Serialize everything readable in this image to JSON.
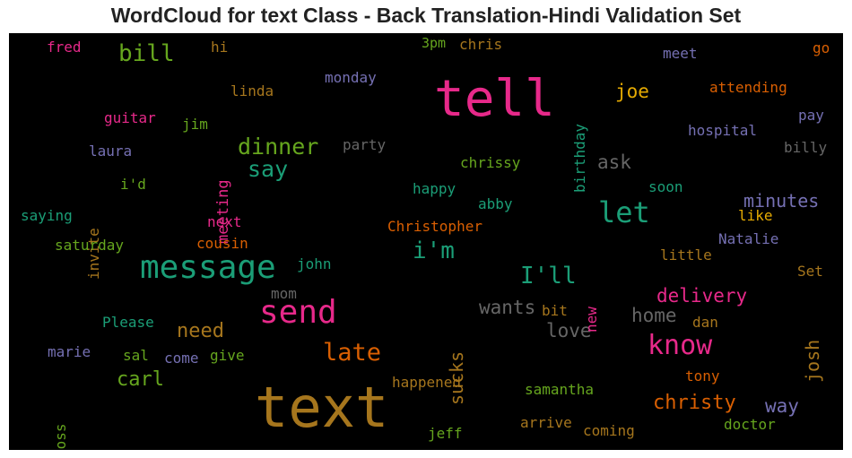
{
  "chart_data": {
    "type": "wordcloud",
    "title": "WordCloud for text Class - Back Translation-Hindi Validation Set",
    "background": "#000000",
    "palette": [
      "#1b9e77",
      "#d95f02",
      "#7570b3",
      "#e7298a",
      "#66a61e",
      "#e6ab02",
      "#a6761d",
      "#666666"
    ],
    "words": [
      {
        "text": "text",
        "color": "#a6761d"
      },
      {
        "text": "tell",
        "color": "#e7298a"
      },
      {
        "text": "message",
        "color": "#1b9e77"
      },
      {
        "text": "send",
        "color": "#e7298a"
      },
      {
        "text": "know",
        "color": "#e7298a"
      },
      {
        "text": "let",
        "color": "#1b9e77"
      },
      {
        "text": "late",
        "color": "#d95f02"
      },
      {
        "text": "dinner",
        "color": "#66a61e"
      },
      {
        "text": "say",
        "color": "#1b9e77"
      },
      {
        "text": "i'm",
        "color": "#1b9e77"
      },
      {
        "text": "I'll",
        "color": "#1b9e77"
      },
      {
        "text": "bill",
        "color": "#66a61e"
      },
      {
        "text": "christy",
        "color": "#d95f02"
      },
      {
        "text": "delivery",
        "color": "#e7298a"
      },
      {
        "text": "minutes",
        "color": "#7570b3"
      },
      {
        "text": "wants",
        "color": "#666666"
      },
      {
        "text": "home",
        "color": "#666666"
      },
      {
        "text": "love",
        "color": "#666666"
      },
      {
        "text": "need",
        "color": "#a6761d"
      },
      {
        "text": "carl",
        "color": "#66a61e"
      },
      {
        "text": "joe",
        "color": "#e6ab02"
      },
      {
        "text": "way",
        "color": "#7570b3"
      },
      {
        "text": "ask",
        "color": "#666666"
      },
      {
        "text": "sucks",
        "color": "#a6761d"
      },
      {
        "text": "josh",
        "color": "#a6761d"
      },
      {
        "text": "birthday",
        "color": "#1b9e77"
      },
      {
        "text": "meeting",
        "color": "#e7298a"
      },
      {
        "text": "invite",
        "color": "#a6761d"
      },
      {
        "text": "boss",
        "color": "#66a61e"
      },
      {
        "text": "new",
        "color": "#e7298a"
      },
      {
        "text": "fred",
        "color": "#e7298a"
      },
      {
        "text": "hi",
        "color": "#a6761d"
      },
      {
        "text": "3pm",
        "color": "#66a61e"
      },
      {
        "text": "chris",
        "color": "#a6761d"
      },
      {
        "text": "meet",
        "color": "#7570b3"
      },
      {
        "text": "go",
        "color": "#d95f02"
      },
      {
        "text": "linda",
        "color": "#a6761d"
      },
      {
        "text": "monday",
        "color": "#7570b3"
      },
      {
        "text": "attending",
        "color": "#d95f02"
      },
      {
        "text": "guitar",
        "color": "#e7298a"
      },
      {
        "text": "jim",
        "color": "#66a61e"
      },
      {
        "text": "pay",
        "color": "#7570b3"
      },
      {
        "text": "hospital",
        "color": "#7570b3"
      },
      {
        "text": "laura",
        "color": "#7570b3"
      },
      {
        "text": "party",
        "color": "#666666"
      },
      {
        "text": "billy",
        "color": "#666666"
      },
      {
        "text": "chrissy",
        "color": "#66a61e"
      },
      {
        "text": "i'd",
        "color": "#66a61e"
      },
      {
        "text": "happy",
        "color": "#1b9e77"
      },
      {
        "text": "soon",
        "color": "#1b9e77"
      },
      {
        "text": "abby",
        "color": "#1b9e77"
      },
      {
        "text": "saying",
        "color": "#1b9e77"
      },
      {
        "text": "next",
        "color": "#e7298a"
      },
      {
        "text": "Christopher",
        "color": "#d95f02"
      },
      {
        "text": "like",
        "color": "#e6ab02"
      },
      {
        "text": "saturday",
        "color": "#66a61e"
      },
      {
        "text": "cousin",
        "color": "#d95f02"
      },
      {
        "text": "Natalie",
        "color": "#7570b3"
      },
      {
        "text": "john",
        "color": "#1b9e77"
      },
      {
        "text": "little",
        "color": "#a6761d"
      },
      {
        "text": "mom",
        "color": "#666666"
      },
      {
        "text": "Set",
        "color": "#a6761d"
      },
      {
        "text": "bit",
        "color": "#a6761d"
      },
      {
        "text": "dan",
        "color": "#a6761d"
      },
      {
        "text": "Please",
        "color": "#1b9e77"
      },
      {
        "text": "marie",
        "color": "#7570b3"
      },
      {
        "text": "sal",
        "color": "#66a61e"
      },
      {
        "text": "come",
        "color": "#7570b3"
      },
      {
        "text": "give",
        "color": "#66a61e"
      },
      {
        "text": "tony",
        "color": "#d95f02"
      },
      {
        "text": "happened",
        "color": "#a6761d"
      },
      {
        "text": "samantha",
        "color": "#66a61e"
      },
      {
        "text": "doctor",
        "color": "#66a61e"
      },
      {
        "text": "arrive",
        "color": "#a6761d"
      },
      {
        "text": "coming",
        "color": "#a6761d"
      },
      {
        "text": "jeff",
        "color": "#66a61e"
      }
    ]
  }
}
